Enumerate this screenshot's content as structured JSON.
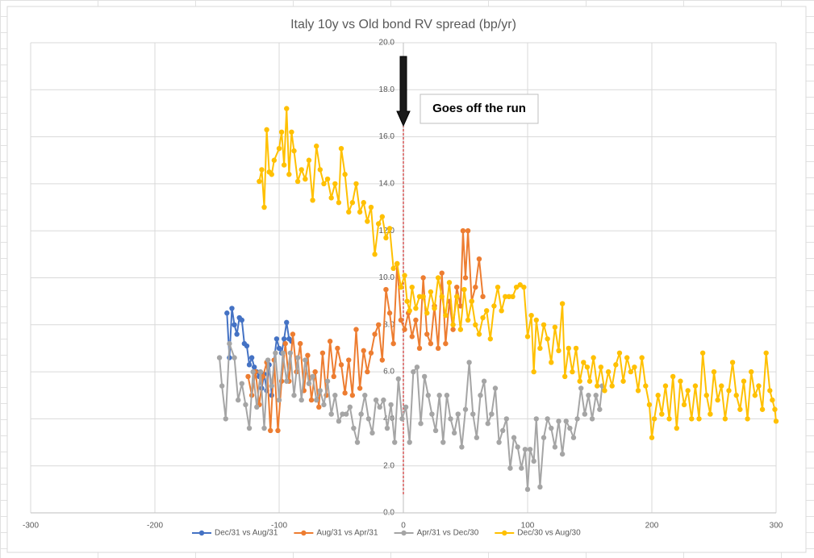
{
  "chart_data": {
    "type": "line",
    "title": "Italy 10y vs Old bond RV spread (bp/yr)",
    "annotation": "Goes off the run",
    "reference_line": {
      "x": 0,
      "color": "#c00000"
    },
    "xlim": [
      -300,
      300
    ],
    "xticks": [
      -300,
      -200,
      -100,
      0,
      100,
      200,
      300
    ],
    "ylim": [
      0,
      20
    ],
    "yticks": [
      {
        "value": 0,
        "label": "0.0"
      },
      {
        "value": 2,
        "label": "2.0"
      },
      {
        "value": 4,
        "label": "4.0"
      },
      {
        "value": 6,
        "label": "6.0"
      },
      {
        "value": 8,
        "label": "8.0"
      },
      {
        "value": 10,
        "label": "10.0"
      },
      {
        "value": 12,
        "label": "12.0"
      },
      {
        "value": 14,
        "label": "14.0"
      },
      {
        "value": 16,
        "label": "16.0"
      },
      {
        "value": 18,
        "label": "18.0"
      },
      {
        "value": 20,
        "label": "20.0"
      }
    ],
    "grid": true,
    "legend": "bottom",
    "series": [
      {
        "name": "Dec/31 vs Aug/31",
        "color": "#4472c4",
        "x": [
          -142,
          -140,
          -138,
          -136,
          -134,
          -132,
          -130,
          -128,
          -126,
          -124,
          -122,
          -120,
          -118,
          -116,
          -114,
          -112,
          -110,
          -108,
          -106,
          -104,
          -102,
          -100,
          -98,
          -96,
          -94,
          -92,
          -90
        ],
        "values": [
          8.5,
          6.6,
          8.7,
          8.0,
          7.6,
          8.3,
          8.2,
          7.2,
          7.1,
          6.3,
          6.6,
          6.2,
          6.0,
          5.8,
          5.3,
          5.9,
          5.2,
          6.3,
          5.0,
          6.5,
          7.4,
          7.0,
          6.8,
          7.4,
          8.1,
          7.4,
          7.3
        ]
      },
      {
        "name": "Aug/31 vs Apr/31",
        "color": "#ed7d31",
        "x": [
          -125,
          -122,
          -119,
          -116,
          -113,
          -110,
          -107,
          -104,
          -101,
          -98,
          -95,
          -92,
          -89,
          -86,
          -83,
          -80,
          -77,
          -74,
          -71,
          -68,
          -65,
          -62,
          -59,
          -56,
          -53,
          -50,
          -47,
          -44,
          -41,
          -38,
          -35,
          -32,
          -29,
          -26,
          -23,
          -20,
          -17,
          -14,
          -11,
          -8,
          -5,
          -2,
          1,
          4,
          7,
          10,
          13,
          16,
          19,
          22,
          25,
          28,
          31,
          34,
          37,
          40,
          43,
          46,
          48,
          50,
          52,
          55,
          58,
          61,
          64
        ],
        "values": [
          5.8,
          5.0,
          6.0,
          4.6,
          5.8,
          6.4,
          3.5,
          6.5,
          3.5,
          5.6,
          7.2,
          5.6,
          7.6,
          6.0,
          7.2,
          5.2,
          6.7,
          4.8,
          6.0,
          4.5,
          6.8,
          5.0,
          7.3,
          5.8,
          7.0,
          6.3,
          5.1,
          6.5,
          5.0,
          7.8,
          5.3,
          6.9,
          6.0,
          6.8,
          7.6,
          8.0,
          6.5,
          9.5,
          8.5,
          7.2,
          10.6,
          8.2,
          7.8,
          8.5,
          7.5,
          8.2,
          7.0,
          10.0,
          7.6,
          7.2,
          8.8,
          7.0,
          10.2,
          7.2,
          9.0,
          7.8,
          9.6,
          8.8,
          12.0,
          10.0,
          12.0,
          9.0,
          9.6,
          10.8,
          9.2
        ]
      },
      {
        "name": "Apr/31 vs Dec/30",
        "color": "#a5a5a5",
        "x": [
          -148,
          -146,
          -143,
          -140,
          -136,
          -133,
          -130,
          -127,
          -124,
          -121,
          -118,
          -115,
          -112,
          -109,
          -106,
          -103,
          -100,
          -97,
          -94,
          -91,
          -88,
          -85,
          -82,
          -79,
          -76,
          -73,
          -70,
          -67,
          -64,
          -61,
          -58,
          -55,
          -52,
          -49,
          -46,
          -43,
          -40,
          -37,
          -34,
          -31,
          -28,
          -25,
          -22,
          -19,
          -16,
          -13,
          -10,
          -7,
          -4,
          -1,
          2,
          5,
          8,
          11,
          14,
          17,
          20,
          23,
          26,
          29,
          32,
          35,
          38,
          41,
          44,
          47,
          50,
          53,
          56,
          59,
          62,
          65,
          68,
          71,
          74,
          77,
          80,
          83,
          86,
          89,
          92,
          95,
          98,
          100,
          102,
          105,
          107,
          110,
          113,
          116,
          119,
          122,
          125,
          128,
          131,
          134,
          137,
          140,
          143,
          146,
          149,
          152,
          155,
          158,
          160
        ],
        "values": [
          6.6,
          5.4,
          4.0,
          7.2,
          6.6,
          4.8,
          5.5,
          4.6,
          3.6,
          6.0,
          4.5,
          6.0,
          3.6,
          6.5,
          5.4,
          6.8,
          4.8,
          6.8,
          5.6,
          6.8,
          5.0,
          6.6,
          4.8,
          6.5,
          5.5,
          5.8,
          4.8,
          5.2,
          4.6,
          5.6,
          4.2,
          5.0,
          3.9,
          4.2,
          4.2,
          4.5,
          3.6,
          3.0,
          4.2,
          5.0,
          4.0,
          3.4,
          4.8,
          4.5,
          4.8,
          3.6,
          4.6,
          3.0,
          5.7,
          4.0,
          4.5,
          3.0,
          6.0,
          6.2,
          3.8,
          5.8,
          5.0,
          4.2,
          3.5,
          5.0,
          3.0,
          5.0,
          4.0,
          3.4,
          4.2,
          2.8,
          4.4,
          6.4,
          4.2,
          3.2,
          5.0,
          5.6,
          3.8,
          4.2,
          5.3,
          3.0,
          3.5,
          4.0,
          1.9,
          3.2,
          2.8,
          1.9,
          2.7,
          1.0,
          2.7,
          2.2,
          4.0,
          1.1,
          3.2,
          4.0,
          3.6,
          2.8,
          3.9,
          2.5,
          3.9,
          3.6,
          3.2,
          4.0,
          5.3,
          4.2,
          5.0,
          4.0,
          5.0,
          4.4,
          5.4
        ]
      },
      {
        "name": "Dec/30 vs Aug/30",
        "color": "#ffc000",
        "x": [
          -116,
          -114,
          -112,
          -110,
          -108,
          -106,
          -104,
          -100,
          -98,
          -96,
          -94,
          -92,
          -90,
          -88,
          -85,
          -82,
          -79,
          -76,
          -73,
          -70,
          -67,
          -64,
          -61,
          -58,
          -55,
          -52,
          -50,
          -47,
          -44,
          -41,
          -38,
          -35,
          -32,
          -29,
          -26,
          -23,
          -20,
          -17,
          -14,
          -11,
          -8,
          -5,
          -2,
          1,
          3,
          5,
          7,
          10,
          13,
          16,
          19,
          22,
          25,
          28,
          31,
          34,
          37,
          40,
          43,
          46,
          49,
          52,
          55,
          58,
          61,
          64,
          67,
          70,
          73,
          76,
          79,
          82,
          85,
          88,
          91,
          94,
          97,
          100,
          103,
          105,
          107,
          110,
          113,
          116,
          119,
          122,
          125,
          128,
          130,
          133,
          136,
          139,
          142,
          145,
          148,
          150,
          153,
          156,
          159,
          162,
          165,
          168,
          171,
          174,
          177,
          180,
          183,
          186,
          189,
          192,
          195,
          198,
          200,
          202,
          205,
          208,
          211,
          214,
          217,
          220,
          223,
          226,
          229,
          232,
          235,
          238,
          241,
          244,
          247,
          250,
          253,
          256,
          259,
          262,
          265,
          268,
          271,
          274,
          277,
          280,
          283,
          286,
          289,
          292,
          295,
          297,
          299,
          300
        ],
        "values": [
          14.1,
          14.6,
          13.0,
          16.3,
          14.5,
          14.4,
          15.0,
          15.5,
          16.2,
          14.8,
          17.2,
          14.4,
          16.2,
          15.4,
          14.1,
          14.6,
          14.2,
          15.0,
          13.3,
          15.6,
          14.6,
          14.0,
          14.2,
          13.4,
          14.0,
          13.2,
          15.5,
          14.4,
          12.8,
          13.2,
          14.0,
          12.8,
          13.2,
          12.4,
          13.0,
          11.0,
          12.3,
          12.6,
          11.7,
          12.1,
          10.4,
          10.6,
          9.6,
          10.1,
          9.0,
          8.6,
          9.6,
          8.7,
          9.2,
          9.2,
          8.5,
          9.4,
          8.7,
          10.0,
          9.2,
          8.4,
          9.8,
          8.0,
          9.2,
          7.8,
          9.5,
          8.2,
          9.0,
          8.0,
          7.6,
          8.3,
          8.6,
          7.4,
          8.8,
          9.6,
          8.6,
          9.2,
          9.2,
          9.2,
          9.6,
          9.7,
          9.6,
          7.5,
          8.4,
          6.0,
          8.2,
          7.0,
          8.0,
          7.4,
          6.4,
          7.9,
          6.9,
          8.9,
          5.8,
          7.0,
          6.0,
          7.0,
          5.6,
          6.4,
          6.2,
          5.6,
          6.6,
          5.4,
          6.2,
          5.2,
          6.0,
          5.4,
          6.3,
          6.8,
          5.6,
          6.6,
          6.0,
          6.2,
          5.2,
          6.6,
          5.4,
          4.6,
          3.2,
          4.0,
          5.0,
          4.2,
          5.4,
          4.0,
          5.8,
          3.6,
          5.6,
          4.6,
          5.2,
          4.0,
          5.4,
          4.0,
          6.8,
          5.0,
          4.2,
          6.0,
          4.8,
          5.4,
          4.0,
          5.2,
          6.4,
          5.0,
          4.4,
          5.6,
          4.0,
          6.0,
          5.0,
          5.4,
          4.4,
          6.8,
          5.2,
          4.8,
          4.4,
          3.9
        ]
      }
    ]
  }
}
